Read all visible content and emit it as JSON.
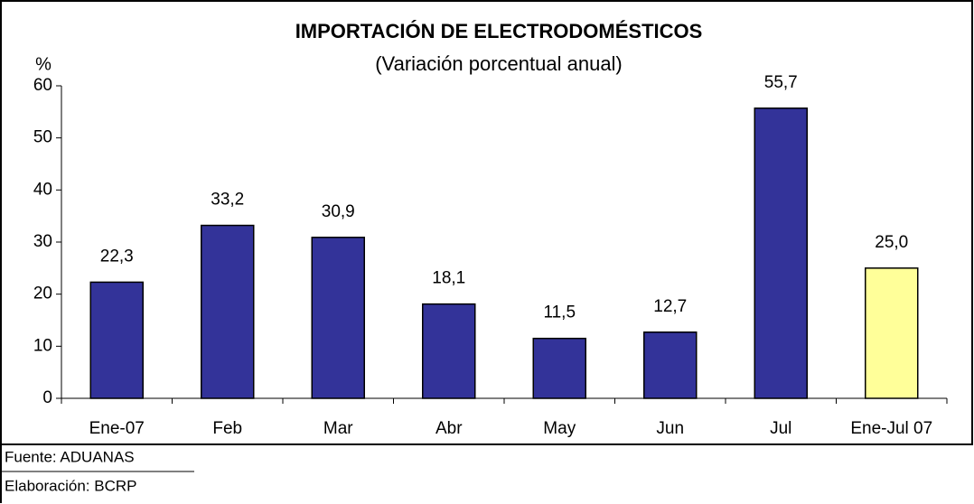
{
  "chart_data": {
    "type": "bar",
    "title": "IMPORTACIÓN DE ELECTRODOMÉSTICOS",
    "subtitle": "(Variación porcentual anual)",
    "y_label": "%",
    "categories": [
      "Ene-07",
      "Feb",
      "Mar",
      "Abr",
      "May",
      "Jun",
      "Jul",
      "Ene-Jul 07"
    ],
    "values": [
      22.3,
      33.2,
      30.9,
      18.1,
      11.5,
      12.7,
      55.7,
      25.0
    ],
    "value_labels": [
      "22,3",
      "33,2",
      "30,9",
      "18,1",
      "11,5",
      "12,7",
      "55,7",
      "25,0"
    ],
    "colors": [
      "#333399",
      "#333399",
      "#333399",
      "#333399",
      "#333399",
      "#333399",
      "#333399",
      "#ffff99"
    ],
    "ylim": [
      0,
      60
    ],
    "yticks": [
      0,
      10,
      20,
      30,
      40,
      50,
      60
    ],
    "notes": [
      "Fuente: ADUANAS",
      "Elaboración: BCRP"
    ]
  }
}
